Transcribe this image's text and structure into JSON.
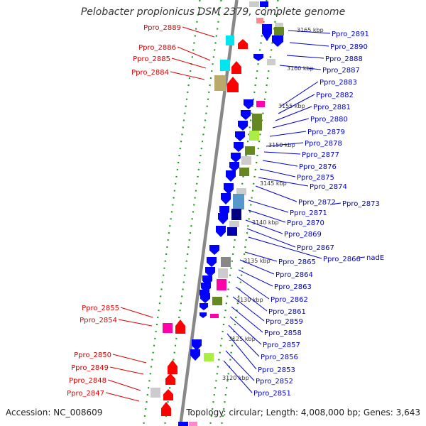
{
  "title": "Pelobacter propionicus DSM 2379, complete genome",
  "accession_text": "Accession: NC_008609",
  "summary_text": "Topology: circular; Length: 4,008,000 bp; Genes: 3,643",
  "colors": {
    "forward_label": "#dd0000",
    "reverse_label": "#0000cc",
    "backbone": "#888888",
    "dots": "#229922",
    "cds_forward": "#ff0000",
    "cds_reverse": "#0000ff"
  },
  "kbp_ticks": [
    "3165 kbp",
    "3160 kbp",
    "3155 kbp",
    "3150 kbp",
    "3145 kbp",
    "3140 kbp",
    "3135 kbp",
    "3130 kbp",
    "3125 kbp",
    "3120 kbp"
  ],
  "left_labels": [
    "Ppro_2889",
    "Ppro_2886",
    "Ppro_2885",
    "Ppro_2884",
    "Ppro_2855",
    "Ppro_2854",
    "Ppro_2850",
    "Ppro_2849",
    "Ppro_2848",
    "Ppro_2847"
  ],
  "right_labels": [
    "Ppro_2891",
    "Ppro_2890",
    "Ppro_2888",
    "Ppro_2887",
    "Ppro_2883",
    "Ppro_2882",
    "Ppro_2881",
    "Ppro_2880",
    "Ppro_2879",
    "Ppro_2878",
    "Ppro_2877",
    "Ppro_2876",
    "Ppro_2875",
    "Ppro_2874",
    "Ppro_2872",
    "Ppro_2873",
    "Ppro_2871",
    "Ppro_2870",
    "Ppro_2869",
    "Ppro_2867",
    "Ppro_2866",
    "nadE",
    "Ppro_2865",
    "Ppro_2864",
    "Ppro_2863",
    "Ppro_2862",
    "Ppro_2861",
    "Ppro_2859",
    "Ppro_2858",
    "Ppro_2857",
    "Ppro_2856",
    "Ppro_2853",
    "Ppro_2852",
    "Ppro_2851"
  ]
}
